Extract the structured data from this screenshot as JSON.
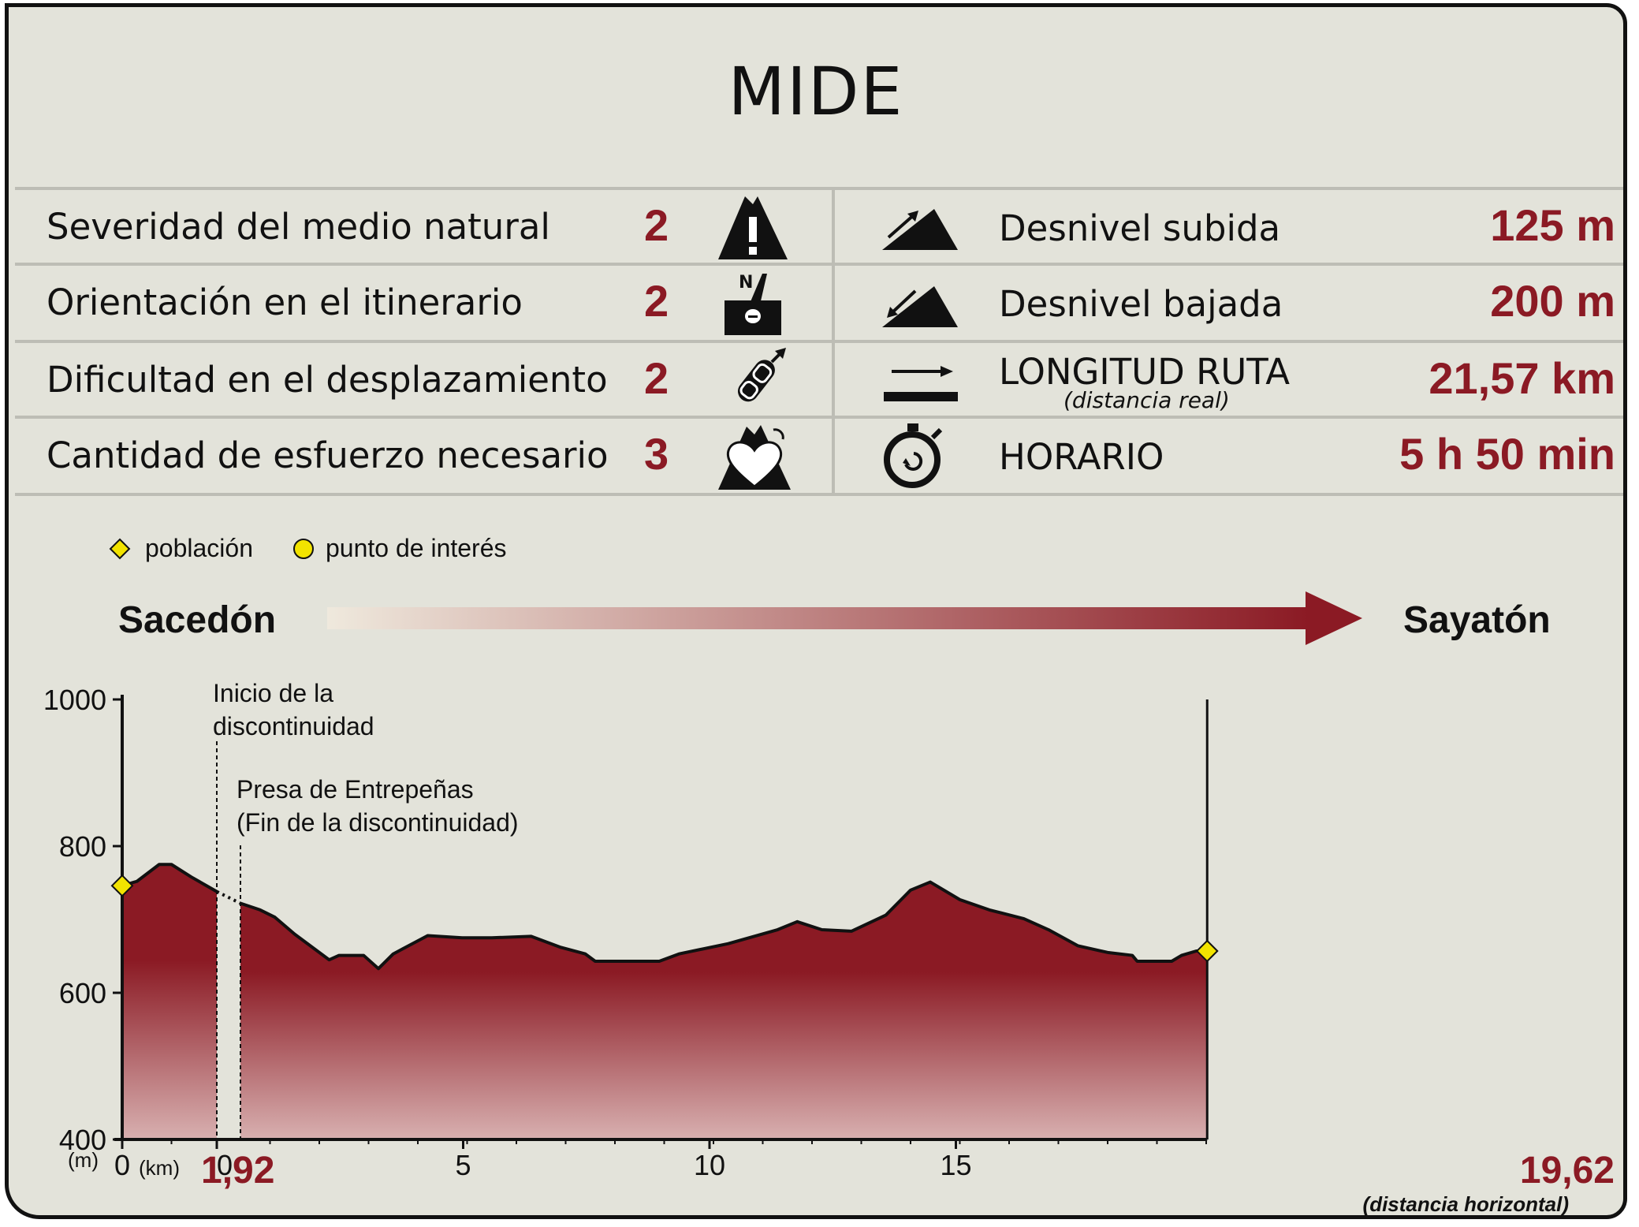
{
  "title": "MIDE",
  "mide": [
    {
      "label": "Severidad del medio natural",
      "value": "2",
      "icon": "warning-mountain-icon"
    },
    {
      "label": "Orientación en el itinerario",
      "value": "2",
      "icon": "compass-north-icon"
    },
    {
      "label": "Dificultad en el desplazamiento",
      "value": "2",
      "icon": "boot-sole-icon"
    },
    {
      "label": "Cantidad de esfuerzo necesario",
      "value": "3",
      "icon": "heart-mountain-icon"
    }
  ],
  "stats": [
    {
      "label": "Desnivel subida",
      "sub": "",
      "value": "125 m",
      "icon": "ascent-icon"
    },
    {
      "label": "Desnivel bajada",
      "sub": "",
      "value": "200 m",
      "icon": "descent-icon"
    },
    {
      "label": "LONGITUD RUTA",
      "sub": "(distancia real)",
      "value": "21,57 km",
      "icon": "length-arrow-icon"
    },
    {
      "label": "HORARIO",
      "sub": "",
      "value": "5 h 50 min",
      "icon": "stopwatch-icon"
    }
  ],
  "legend": {
    "town": "población",
    "poi": "punto de interés"
  },
  "route": {
    "start": "Sacedón",
    "end": "Sayatón"
  },
  "colors": {
    "accent": "#8b1a24",
    "background": "#e3e3da",
    "marker": "#f2e300"
  },
  "chart_data": {
    "type": "area",
    "ylabel": "(m)",
    "xlabel": "(km)",
    "xnote": "(distancia horizontal)",
    "ylim": [
      400,
      1000
    ],
    "yticks": [
      "400",
      "600",
      "800",
      "1000"
    ],
    "xticks": [
      {
        "x": 0,
        "label": "0"
      },
      {
        "x": 1.92,
        "label": "0"
      },
      {
        "x": 6.92,
        "label": "5"
      },
      {
        "x": 11.92,
        "label": "10"
      },
      {
        "x": 16.92,
        "label": "15"
      }
    ],
    "discontinuity": {
      "start": 1.92,
      "end": 2.4,
      "start_label": "1,92",
      "end_total": "19,62"
    },
    "annotations": [
      {
        "x": 1.92,
        "lines": [
          "Inicio de la",
          "discontinuidad"
        ]
      },
      {
        "x": 2.4,
        "lines": [
          "Presa de Entrepeñas",
          "(Fin de la discontinuidad)"
        ]
      }
    ],
    "series": [
      {
        "points": [
          [
            0,
            746
          ],
          [
            0.3,
            752
          ],
          [
            0.75,
            775
          ],
          [
            1.0,
            775
          ],
          [
            1.4,
            758
          ],
          [
            1.92,
            738
          ],
          [
            2.4,
            722
          ],
          [
            2.8,
            713
          ],
          [
            3.1,
            703
          ],
          [
            3.5,
            680
          ],
          [
            4.2,
            645
          ],
          [
            4.4,
            651
          ],
          [
            4.9,
            651
          ],
          [
            5.2,
            633
          ],
          [
            5.5,
            653
          ],
          [
            6.2,
            678
          ],
          [
            6.9,
            675
          ],
          [
            7.5,
            675
          ],
          [
            8.3,
            677
          ],
          [
            8.9,
            662
          ],
          [
            9.4,
            653
          ],
          [
            9.6,
            643
          ],
          [
            10.6,
            643
          ],
          [
            10.9,
            643
          ],
          [
            11.3,
            653
          ],
          [
            12.3,
            667
          ],
          [
            13.3,
            686
          ],
          [
            13.7,
            697
          ],
          [
            14.2,
            686
          ],
          [
            14.8,
            684
          ],
          [
            15.5,
            706
          ],
          [
            16.0,
            740
          ],
          [
            16.4,
            751
          ],
          [
            17.0,
            727
          ],
          [
            17.6,
            713
          ],
          [
            18.3,
            701
          ],
          [
            18.8,
            686
          ],
          [
            19.4,
            664
          ],
          [
            20.0,
            655
          ],
          [
            20.5,
            651
          ],
          [
            20.6,
            643
          ],
          [
            21.3,
            643
          ],
          [
            21.5,
            651
          ],
          [
            21.8,
            657
          ],
          [
            22.02,
            657
          ]
        ],
        "gap": [
          1.92,
          2.4
        ]
      }
    ],
    "markers": [
      {
        "x": 0,
        "y": 746,
        "type": "población"
      },
      {
        "x": 22.02,
        "y": 657,
        "type": "población"
      }
    ]
  }
}
